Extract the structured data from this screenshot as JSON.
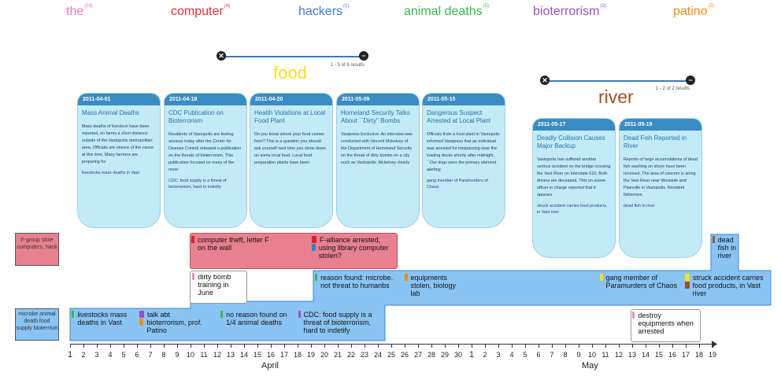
{
  "keywords": [
    {
      "word": "the",
      "count": "(28)",
      "color": "#e87ac0"
    },
    {
      "word": "computer",
      "count": "(4)",
      "color": "#e0303a"
    },
    {
      "word": "hackers",
      "count": "(1)",
      "color": "#3a7ec9"
    },
    {
      "word": "animal deaths",
      "count": "(5)",
      "color": "#3cb84a"
    },
    {
      "word": "bioterrorism",
      "count": "(2)",
      "color": "#9b4fc0"
    },
    {
      "word": "patino",
      "count": "(2)",
      "color": "#f08c1a"
    }
  ],
  "sliders": [
    {
      "topic": "food",
      "topic_color": "#f2e21e",
      "results": "1 - 5 of 6 results",
      "start_icon": "✕",
      "end_icon": "−"
    },
    {
      "topic": "river",
      "topic_color": "#9c5225",
      "results": "1 - 2 of 2 results",
      "start_icon": "✕",
      "end_icon": "−"
    }
  ],
  "cards": [
    {
      "date": "2011-04-01",
      "title": "Mass Animal Deaths",
      "body": "Mass deaths of livestock have been reported, on farms a short distance outside of the Vastopolis metropolitan area. Officials are unsure of the cause at this time. Many farmers are preparing for",
      "note": "livestocks mass deaths in Vast"
    },
    {
      "date": "2011-04-18",
      "title": "CDC Publication on Bioterrorism",
      "body": "Residents of Vastopolis are feeling anxious today after the Center for Disease Control released a publication on the threats of bioterrorism. This publication focused on many of the more",
      "note": "CDC: food supply is a threat of bioterrorism, hard to indetify"
    },
    {
      "date": "2011-04-20",
      "title": "Health Violations at Local Food Plant",
      "body": "Do you know where your food comes from?          This is a question you should ask yourself next time you show down on some local food. Local food preparation plants have been",
      "note": ""
    },
    {
      "date": "2011-05-09",
      "title": "Homeland Security Talks About ``Dirty'' Bombs",
      "body": "Vastpress Exclusive: An interview was conducted with Vincent Mckelvey  of the Department of Homeland Security on the threat of dirty bombs on a city such as Vastopolis. Mckelvey  clearly",
      "note": ""
    },
    {
      "date": "2011-05-15",
      "title": "Dangerous Suspect Arrested at Local Plant",
      "body": "Officials from a food plant in Vastopolis informed Vastpress that an individual was arrested for trespassing near the loading docks shortly after midnight. ``Our dogs were the primary element alerting",
      "note": "gang member of Paramurders of Chaos"
    },
    {
      "date": "2011-05-17",
      "title": "Deadly Collision Causes Major Backup",
      "body": "Vastopolis has suffered another serious accident on the bridge crossing the Vast River on Interstate 610. Both drivers are deceased. This on-scene officer in charge reported that it appears",
      "note": "struck accident carries food products, in Vast river"
    },
    {
      "date": "2011-05-19",
      "title": "Dead Fish Reported in River",
      "body": "Reports of large accumulations of dead fish washing on shore have been received. The area of concern is along the Vast River near Westside and Plainville in Vastopolis. Resident fishermen",
      "note": "dead fish in river"
    }
  ],
  "lanes": {
    "red_label": "F-group stole computers, hack",
    "blue_label": "microbe animal death food supply bioterrism"
  },
  "events": [
    {
      "text": "computer theft, letter F on the wall",
      "swatch": "#d8232a"
    },
    {
      "text": "F-alliance arrested,",
      "swatch": "#d8232a"
    },
    {
      "text": "using library computer stolen?",
      "swatch": "#3a7ec9"
    },
    {
      "text": "dead fish in river",
      "swatch": "#9c5225"
    },
    {
      "text": "dirty bomb training in June",
      "swatch": "#f08cc8"
    },
    {
      "text": "reason found: microbe. not threat to humanbs",
      "swatch": "#3cb84a"
    },
    {
      "text": "equipments stolen, biology lab",
      "swatch": "#f08c1a"
    },
    {
      "text": "gang member of Paramurders of Chaos",
      "swatch": "#f2e21e"
    },
    {
      "text": "struck accident carries",
      "swatch": "#f2e21e"
    },
    {
      "text": "food products, in Vast river",
      "swatch": "#9c5225"
    },
    {
      "text": "livestocks mass deaths in Vast",
      "swatch": "#3cb84a"
    },
    {
      "text": "talk abt",
      "swatch": "#9b4fc0"
    },
    {
      "text": "bioterrorism, prof. Patino",
      "swatch": "#f08c1a"
    },
    {
      "text": "no reason found on 1/4 animal deaths",
      "swatch": "#3cb84a"
    },
    {
      "text": "CDC: food supply is a threat of bioterrorism, hard to indetify",
      "swatch": "#9b4fc0"
    },
    {
      "text": "destroy equipments when arrested",
      "swatch": "#f08cc8"
    }
  ],
  "axis": {
    "april_days": [
      "1",
      "2",
      "3",
      "4",
      "5",
      "6",
      "7",
      "8",
      "9",
      "10",
      "11",
      "12",
      "13",
      "14",
      "15",
      "16",
      "17",
      "18",
      "19",
      "20",
      "21",
      "22",
      "23",
      "24",
      "25",
      "26",
      "27",
      "28",
      "29",
      "30"
    ],
    "may_days": [
      "1",
      "2",
      "3",
      "4",
      "5",
      "6",
      "7",
      "8",
      "9",
      "10",
      "11",
      "12",
      "13",
      "14",
      "15",
      "16",
      "17",
      "18",
      "19"
    ],
    "april_label": "April",
    "may_label": "May"
  },
  "colors": {
    "lane_red": "#e8808f",
    "lane_blue": "#8ac4f4",
    "card_bg": "#c3ebf7",
    "card_header": "#3a8cc4"
  }
}
